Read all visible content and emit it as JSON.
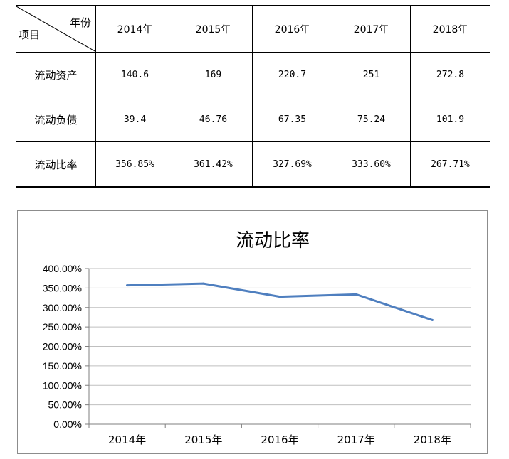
{
  "table": {
    "corner_top": "年份",
    "corner_bottom": "项目",
    "years": [
      "2014年",
      "2015年",
      "2016年",
      "2017年",
      "2018年"
    ],
    "rows": [
      {
        "label": "流动资产",
        "values": [
          "140.6",
          "169",
          "220.7",
          "251",
          "272.8"
        ]
      },
      {
        "label": "流动负债",
        "values": [
          "39.4",
          "46.76",
          "67.35",
          "75.24",
          "101.9"
        ]
      },
      {
        "label": "流动比率",
        "values": [
          "356.85%",
          "361.42%",
          "327.69%",
          "333.60%",
          "267.71%"
        ]
      }
    ]
  },
  "chart_data": {
    "type": "line",
    "title": "流动比率",
    "categories": [
      "2014年",
      "2015年",
      "2016年",
      "2017年",
      "2018年"
    ],
    "series": [
      {
        "name": "流动比率",
        "values": [
          356.85,
          361.42,
          327.69,
          333.6,
          267.71
        ]
      }
    ],
    "ylim": [
      0,
      400
    ],
    "yticks": [
      "0.00%",
      "50.00%",
      "100.00%",
      "150.00%",
      "200.00%",
      "250.00%",
      "300.00%",
      "350.00%",
      "400.00%"
    ],
    "xlabel": "",
    "ylabel": "",
    "grid": true,
    "legend": "none",
    "line_color": "#4f7fbf"
  }
}
